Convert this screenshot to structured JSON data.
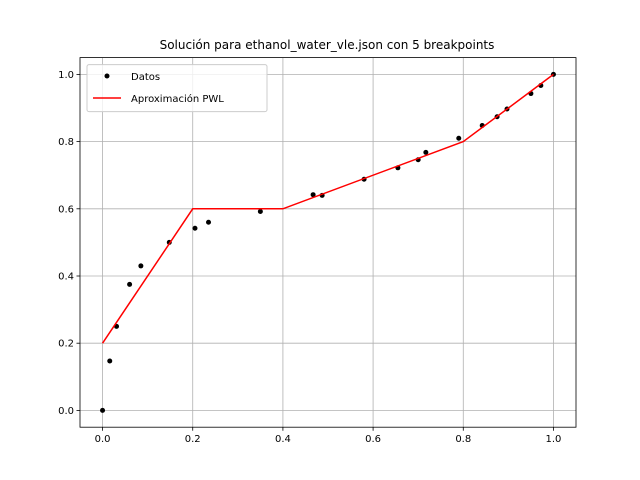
{
  "chart_data": {
    "type": "line",
    "title": "Solución para ethanol_water_vle.json con 5 breakpoints",
    "xlabel": "",
    "ylabel": "",
    "xlim": [
      -0.05,
      1.05
    ],
    "ylim": [
      -0.05,
      1.05
    ],
    "x_ticks": [
      0.0,
      0.2,
      0.4,
      0.6,
      0.8,
      1.0
    ],
    "x_tick_labels": [
      "0.0",
      "0.2",
      "0.4",
      "0.6",
      "0.8",
      "1.0"
    ],
    "y_ticks": [
      0.0,
      0.2,
      0.4,
      0.6,
      0.8,
      1.0
    ],
    "y_tick_labels": [
      "0.0",
      "0.2",
      "0.4",
      "0.6",
      "0.8",
      "1.0"
    ],
    "grid": true,
    "legend_position": "top-left",
    "series": [
      {
        "name": "Datos",
        "kind": "scatter",
        "color": "#000000",
        "x": [
          0.0,
          0.016,
          0.031,
          0.06,
          0.085,
          0.148,
          0.205,
          0.235,
          0.35,
          0.467,
          0.487,
          0.58,
          0.655,
          0.7,
          0.717,
          0.79,
          0.842,
          0.875,
          0.897,
          0.95,
          0.972,
          1.0
        ],
        "y": [
          0.0,
          0.147,
          0.25,
          0.375,
          0.43,
          0.5,
          0.542,
          0.56,
          0.592,
          0.642,
          0.64,
          0.688,
          0.722,
          0.746,
          0.768,
          0.81,
          0.848,
          0.874,
          0.897,
          0.943,
          0.967,
          1.0
        ]
      },
      {
        "name": "Aproximación PWL",
        "kind": "line",
        "color": "#ff0000",
        "x": [
          0.0,
          0.2,
          0.4,
          0.8,
          1.0
        ],
        "y": [
          0.2,
          0.6,
          0.6,
          0.8,
          1.0
        ]
      }
    ]
  }
}
